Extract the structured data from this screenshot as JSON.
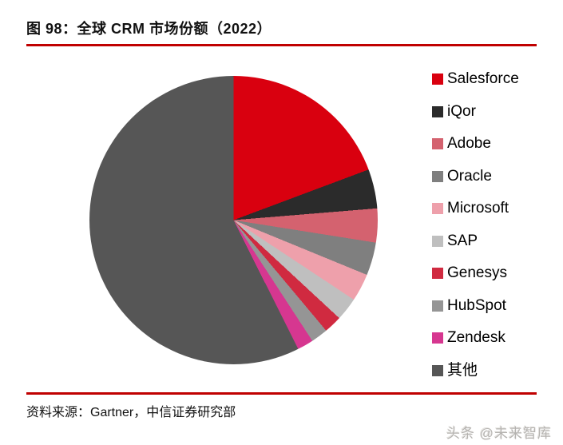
{
  "header": {
    "title": "图 98：全球 CRM 市场份额（2022）"
  },
  "footer": {
    "source": "资料来源：Gartner，中信证券研究部",
    "watermark": "头条 @未来智库"
  },
  "colors": {
    "accent_rule": "#C00000",
    "background": "#FFFFFF",
    "title_text": "#111111"
  },
  "chart_data": {
    "type": "pie",
    "title": "全球 CRM 市场份额（2022）",
    "unit": "percent",
    "start_angle_deg": 0,
    "direction": "clockwise",
    "legend_position": "right",
    "slices": [
      {
        "label": "Salesforce",
        "value": 19.3,
        "color": "#D9000F"
      },
      {
        "label": "iQor",
        "value": 4.4,
        "color": "#2B2B2B"
      },
      {
        "label": "Adobe",
        "value": 3.8,
        "color": "#D4626F"
      },
      {
        "label": "Oracle",
        "value": 3.7,
        "color": "#7F7F7F"
      },
      {
        "label": "Microsoft",
        "value": 3.1,
        "color": "#EEA0AB"
      },
      {
        "label": "SAP",
        "value": 2.6,
        "color": "#BFBFBF"
      },
      {
        "label": "Genesys",
        "value": 2.0,
        "color": "#D02A40"
      },
      {
        "label": "HubSpot",
        "value": 1.9,
        "color": "#959595"
      },
      {
        "label": "Zendesk",
        "value": 1.8,
        "color": "#D63790"
      },
      {
        "label": "其他",
        "value": 57.4,
        "color": "#565656"
      }
    ]
  }
}
